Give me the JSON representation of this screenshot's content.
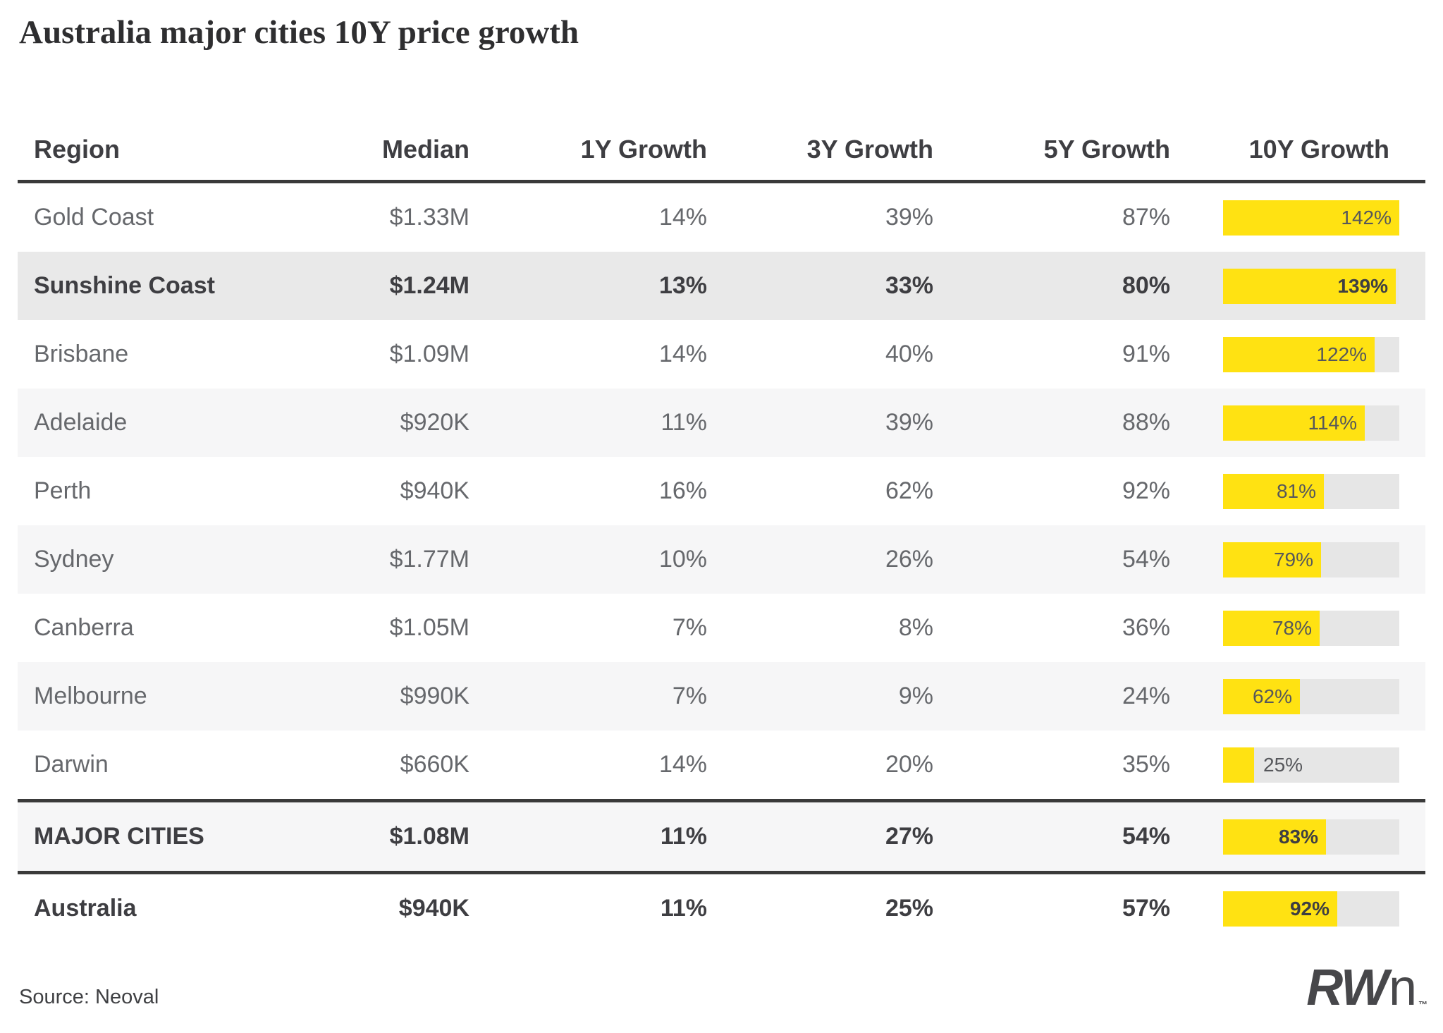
{
  "title": "Australia major cities 10Y price growth",
  "source_note": "Source: Neoval",
  "logo": {
    "bold": "RW",
    "light": "n",
    "tm": "™"
  },
  "colors": {
    "accent_yellow": "#ffe212",
    "bar_track": "#e6e6e6",
    "highlight_row_bg": "#e9e9e9",
    "zebra_row_bg": "#f6f6f7",
    "rule_dark": "#3a3a3a",
    "text_regular": "#66686c",
    "text_strong": "#3e3e42",
    "bar_label": "#56575b"
  },
  "chart_data": {
    "type": "table",
    "title": "Australia major cities 10Y price growth",
    "columns": [
      "Region",
      "Median",
      "1Y Growth",
      "3Y Growth",
      "5Y Growth",
      "10Y Growth"
    ],
    "bar_column": "10Y Growth",
    "bar_axis_max_percent": 142,
    "rows": [
      {
        "region": "Gold Coast",
        "median": "$1.33M",
        "growth_1y": "14%",
        "growth_3y": "39%",
        "growth_5y": "87%",
        "growth_10y": 142,
        "growth_10y_label": "142%",
        "emphasis": false,
        "highlight": false,
        "rules": []
      },
      {
        "region": "Sunshine Coast",
        "median": "$1.24M",
        "growth_1y": "13%",
        "growth_3y": "33%",
        "growth_5y": "80%",
        "growth_10y": 139,
        "growth_10y_label": "139%",
        "emphasis": true,
        "highlight": true,
        "rules": []
      },
      {
        "region": "Brisbane",
        "median": "$1.09M",
        "growth_1y": "14%",
        "growth_3y": "40%",
        "growth_5y": "91%",
        "growth_10y": 122,
        "growth_10y_label": "122%",
        "emphasis": false,
        "highlight": false,
        "rules": []
      },
      {
        "region": "Adelaide",
        "median": "$920K",
        "growth_1y": "11%",
        "growth_3y": "39%",
        "growth_5y": "88%",
        "growth_10y": 114,
        "growth_10y_label": "114%",
        "emphasis": false,
        "highlight": false,
        "rules": []
      },
      {
        "region": "Perth",
        "median": "$940K",
        "growth_1y": "16%",
        "growth_3y": "62%",
        "growth_5y": "92%",
        "growth_10y": 81,
        "growth_10y_label": "81%",
        "emphasis": false,
        "highlight": false,
        "rules": []
      },
      {
        "region": "Sydney",
        "median": "$1.77M",
        "growth_1y": "10%",
        "growth_3y": "26%",
        "growth_5y": "54%",
        "growth_10y": 79,
        "growth_10y_label": "79%",
        "emphasis": false,
        "highlight": false,
        "rules": []
      },
      {
        "region": "Canberra",
        "median": "$1.05M",
        "growth_1y": "7%",
        "growth_3y": "8%",
        "growth_5y": "36%",
        "growth_10y": 78,
        "growth_10y_label": "78%",
        "emphasis": false,
        "highlight": false,
        "rules": []
      },
      {
        "region": "Melbourne",
        "median": "$990K",
        "growth_1y": "7%",
        "growth_3y": "9%",
        "growth_5y": "24%",
        "growth_10y": 62,
        "growth_10y_label": "62%",
        "emphasis": false,
        "highlight": false,
        "rules": []
      },
      {
        "region": "Darwin",
        "median": "$660K",
        "growth_1y": "14%",
        "growth_3y": "20%",
        "growth_5y": "35%",
        "growth_10y": 25,
        "growth_10y_label": "25%",
        "emphasis": false,
        "highlight": false,
        "rules": []
      },
      {
        "region": "MAJOR CITIES",
        "median": "$1.08M",
        "growth_1y": "11%",
        "growth_3y": "27%",
        "growth_5y": "54%",
        "growth_10y": 83,
        "growth_10y_label": "83%",
        "emphasis": true,
        "highlight": false,
        "rules": [
          "above",
          "below"
        ]
      },
      {
        "region": "Australia",
        "median": "$940K",
        "growth_1y": "11%",
        "growth_3y": "25%",
        "growth_5y": "57%",
        "growth_10y": 92,
        "growth_10y_label": "92%",
        "emphasis": true,
        "highlight": false,
        "rules": []
      }
    ]
  }
}
